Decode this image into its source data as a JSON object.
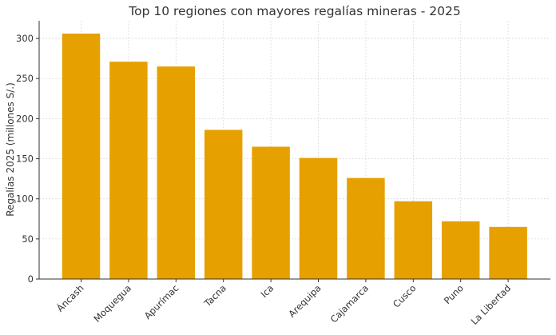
{
  "chart_data": {
    "type": "bar",
    "title": "Top 10 regiones con mayores regalías mineras - 2025",
    "xlabel": "",
    "ylabel": "Regalías 2025 (millones S/.)",
    "categories": [
      "Áncash",
      "Moquegua",
      "Apurímac",
      "Tacna",
      "Ica",
      "Arequipa",
      "Cajamarca",
      "Cusco",
      "Puno",
      "La Libertad"
    ],
    "values": [
      306,
      271,
      265,
      186,
      165,
      151,
      126,
      97,
      72,
      65
    ],
    "ylim": [
      0,
      322
    ],
    "yticks": [
      0,
      50,
      100,
      150,
      200,
      250,
      300
    ],
    "grid": true,
    "bar_color": "#E6A000",
    "grid_color": "#d9d9d9",
    "axis_color": "#333333",
    "text_color": "#333333"
  }
}
